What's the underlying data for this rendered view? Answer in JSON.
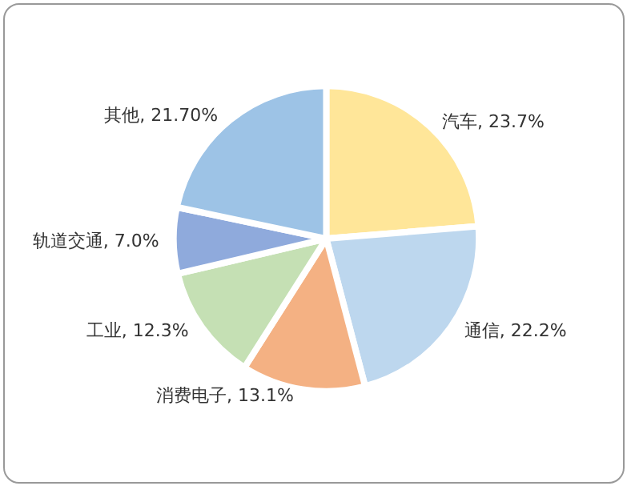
{
  "chart_data": {
    "type": "pie",
    "categories": [
      "汽车",
      "通信",
      "消费电子",
      "工业",
      "轨道交通",
      "其他"
    ],
    "values": [
      23.7,
      22.2,
      13.1,
      12.3,
      7.0,
      21.7
    ],
    "value_labels": [
      "23.7%",
      "22.2%",
      "13.1%",
      "12.3%",
      "7.0%",
      "21.70%"
    ],
    "colors": [
      "#ffe699",
      "#bdd7ee",
      "#f4b183",
      "#c5e0b4",
      "#8faadc",
      "#9dc3e6"
    ],
    "legend": false
  }
}
